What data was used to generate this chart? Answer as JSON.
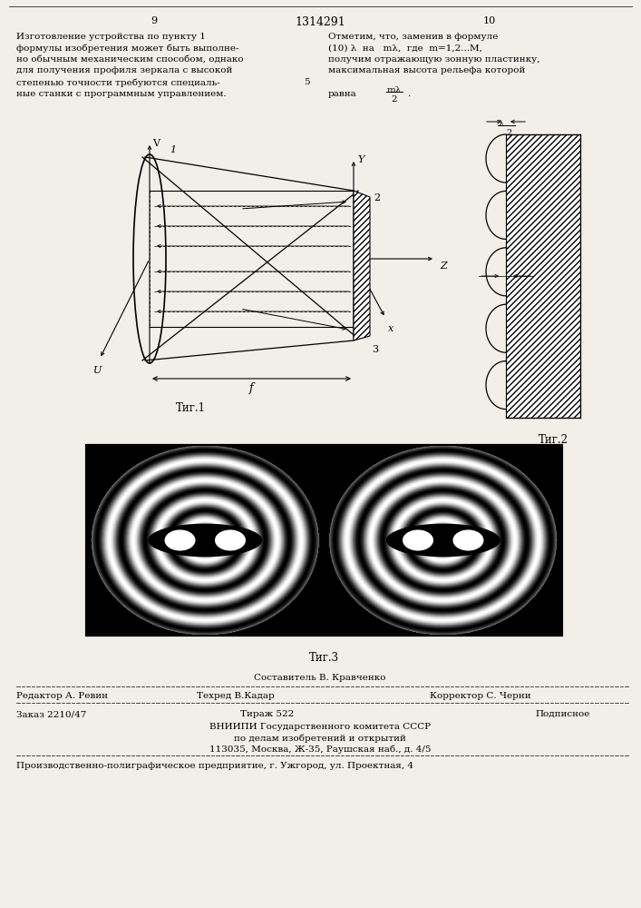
{
  "bg_color": "#f2efe9",
  "page_width": 7.07,
  "page_height": 10.0,
  "top_line1_left": "9",
  "top_center": "1314291",
  "top_line1_right": "10",
  "left_col_text": [
    "Изготовление устройства по пункту 1",
    "формулы изобретения может быть выполне-",
    "но обычным механическим способом, однако",
    "для получения профиля зеркала с высокой",
    "степенью точности требуются специаль-",
    "ные станки с программным управлением."
  ],
  "right_col_text": [
    "Отметим, что, заменив в формуле",
    "(10) λ  на   mλ,  где  m=1,2...M,",
    "получим отражающую зонную пластинку,",
    "максимальная высота рельефа которой"
  ],
  "fig1_label": "Τиг.1",
  "fig2_label": "Τиг.2",
  "fig3_label": "Τиг.3",
  "footer_composer": "Составитель В. Кравченко",
  "footer_editor": "Редактор А. Ревин",
  "footer_techred": "Техред В.Кадар",
  "footer_corrector": "Корректор С. Черни",
  "footer_zakaz": "Заказ 2210/47",
  "footer_tirazh": "Тираж 522",
  "footer_podpisnoe": "Подписное",
  "footer_vnipi": "ВНИИПИ Государственного комитета СССР",
  "footer_po": "по делам изобретений и открытий",
  "footer_addr": "113035, Москва, Ж-35, Раушская наб., д. 4/5",
  "footer_last": "Производственно-полиграфическое предприятие, г. Ужгород, ул. Проектная, 4"
}
